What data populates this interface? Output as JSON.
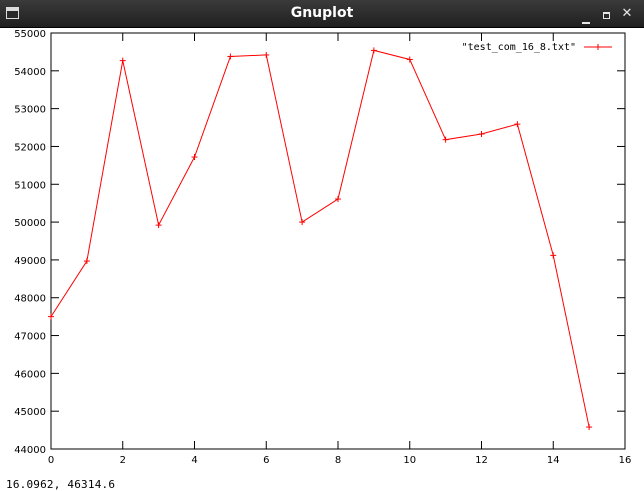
{
  "window": {
    "title": "Gnuplot",
    "controls": {
      "minimize_icon": "minimize-icon",
      "maximize_icon": "maximize-icon",
      "close_icon": "close-icon",
      "close_glyph": "✕"
    }
  },
  "status_bar": {
    "coordinates": "16.0962,  46314.6"
  },
  "chart_data": {
    "type": "line",
    "x": [
      0,
      1,
      2,
      3,
      4,
      5,
      6,
      7,
      8,
      9,
      10,
      11,
      12,
      13,
      14,
      15
    ],
    "series": [
      {
        "name": "\"test_com_16_8.txt\"",
        "color": "#ff0000",
        "marker": "plus",
        "values": [
          47500,
          48970,
          54270,
          49920,
          51720,
          54380,
          54420,
          50000,
          50610,
          54540,
          54300,
          52180,
          52330,
          52590,
          49120,
          44580
        ]
      }
    ],
    "xlim": [
      0,
      16
    ],
    "ylim": [
      44000,
      55000
    ],
    "x_ticks": [
      0,
      2,
      4,
      6,
      8,
      10,
      12,
      14,
      16
    ],
    "y_ticks": [
      44000,
      45000,
      46000,
      47000,
      48000,
      49000,
      50000,
      51000,
      52000,
      53000,
      54000,
      55000
    ],
    "grid": false,
    "legend_position": "top-right"
  }
}
